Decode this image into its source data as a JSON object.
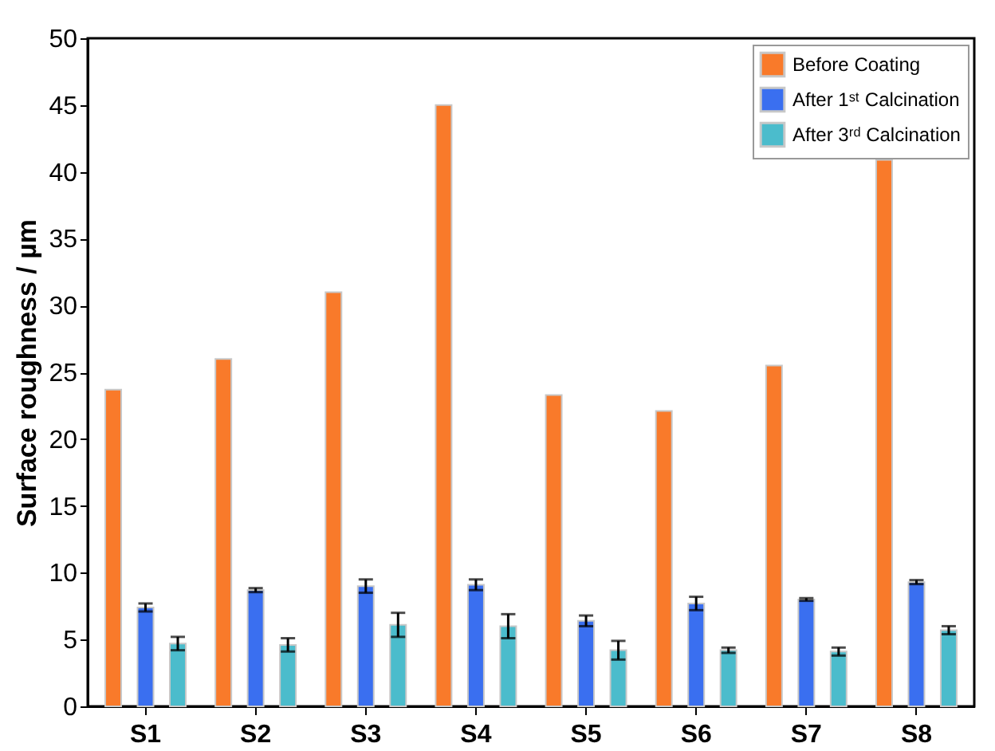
{
  "chart_data": {
    "type": "bar",
    "ylabel": "Surface roughness / µm",
    "categories": [
      "S1",
      "S2",
      "S3",
      "S4",
      "S5",
      "S6",
      "S7",
      "S8"
    ],
    "series": [
      {
        "name": "Before Coating",
        "color": "#f97a2a",
        "values": [
          23.7,
          26.0,
          31.0,
          45.0,
          23.3,
          22.1,
          25.5,
          40.9
        ]
      },
      {
        "name": "After 1ˢᵗ Calcination",
        "color": "#3a6ff0",
        "values": [
          7.4,
          8.7,
          9.0,
          9.1,
          6.4,
          7.7,
          8.0,
          9.3
        ],
        "errors": [
          0.3,
          0.15,
          0.5,
          0.4,
          0.4,
          0.5,
          0.1,
          0.15
        ]
      },
      {
        "name": "After 3ʳᵈ Calcination",
        "color": "#4bbccc",
        "values": [
          4.7,
          4.6,
          6.1,
          6.0,
          4.2,
          4.2,
          4.1,
          5.7
        ],
        "errors": [
          0.5,
          0.5,
          0.9,
          0.9,
          0.7,
          0.2,
          0.3,
          0.3
        ]
      }
    ],
    "ylim": [
      0,
      50
    ],
    "yticks": [
      0,
      5,
      10,
      15,
      20,
      25,
      30,
      35,
      40,
      45,
      50
    ],
    "grid": false,
    "legend": "top right"
  }
}
